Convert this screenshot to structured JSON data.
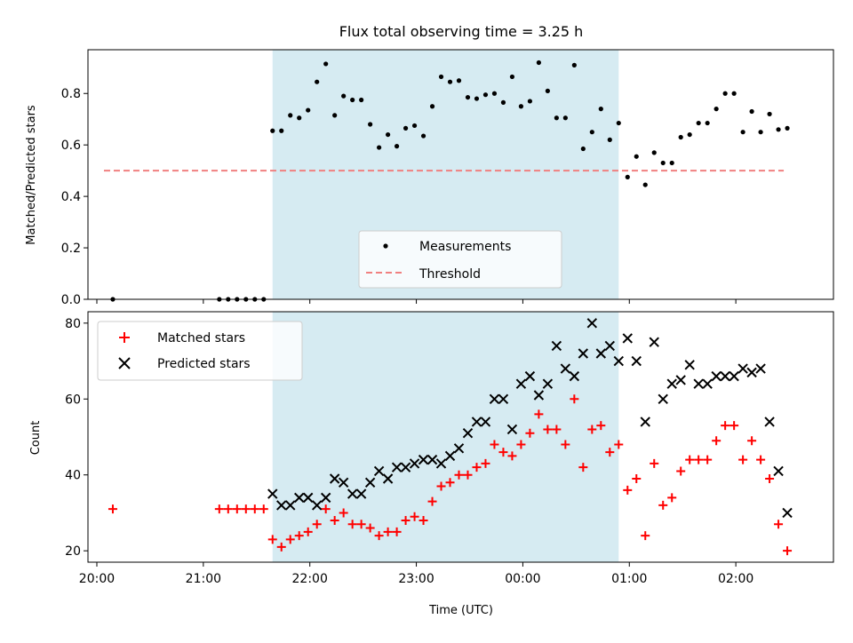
{
  "chart_data": [
    {
      "type": "scatter",
      "title": "Flux total observing time = 3.25 h",
      "ylabel": "Matched/Predicted stars",
      "xlim": [
        "19:55",
        "02:55"
      ],
      "ylim": [
        0,
        0.97
      ],
      "yticks": [
        "0.0",
        "0.2",
        "0.4",
        "0.6",
        "0.8"
      ],
      "shaded_region": {
        "start": "21:39",
        "end": "00:54"
      },
      "legend": {
        "position": "lower center",
        "entries": [
          "Measurements",
          "Threshold"
        ]
      },
      "threshold": {
        "name": "Threshold",
        "value": 0.5,
        "x_start": "20:04",
        "x_end": "02:27",
        "color": "#f08080"
      },
      "series": [
        {
          "name": "Measurements",
          "color": "#000000",
          "points": [
            [
              "20:09",
              0.0
            ],
            [
              "21:09",
              0.0
            ],
            [
              "21:14",
              0.0
            ],
            [
              "21:19",
              0.0
            ],
            [
              "21:24",
              0.0
            ],
            [
              "21:29",
              0.0
            ],
            [
              "21:34",
              0.0
            ],
            [
              "21:39",
              0.655
            ],
            [
              "21:44",
              0.655
            ],
            [
              "21:49",
              0.715
            ],
            [
              "21:54",
              0.705
            ],
            [
              "21:59",
              0.735
            ],
            [
              "22:04",
              0.845
            ],
            [
              "22:09",
              0.915
            ],
            [
              "22:14",
              0.715
            ],
            [
              "22:19",
              0.79
            ],
            [
              "22:24",
              0.775
            ],
            [
              "22:29",
              0.775
            ],
            [
              "22:34",
              0.68
            ],
            [
              "22:39",
              0.59
            ],
            [
              "22:44",
              0.64
            ],
            [
              "22:49",
              0.595
            ],
            [
              "22:54",
              0.665
            ],
            [
              "22:59",
              0.675
            ],
            [
              "23:04",
              0.635
            ],
            [
              "23:09",
              0.75
            ],
            [
              "23:14",
              0.865
            ],
            [
              "23:19",
              0.845
            ],
            [
              "23:24",
              0.85
            ],
            [
              "23:29",
              0.785
            ],
            [
              "23:34",
              0.78
            ],
            [
              "23:39",
              0.795
            ],
            [
              "23:44",
              0.8
            ],
            [
              "23:49",
              0.765
            ],
            [
              "23:54",
              0.865
            ],
            [
              "23:59",
              0.75
            ],
            [
              "00:04",
              0.77
            ],
            [
              "00:09",
              0.92
            ],
            [
              "00:14",
              0.81
            ],
            [
              "00:19",
              0.705
            ],
            [
              "00:24",
              0.705
            ],
            [
              "00:29",
              0.91
            ],
            [
              "00:34",
              0.585
            ],
            [
              "00:39",
              0.65
            ],
            [
              "00:44",
              0.74
            ],
            [
              "00:49",
              0.62
            ],
            [
              "00:54",
              0.685
            ],
            [
              "00:59",
              0.475
            ],
            [
              "01:04",
              0.555
            ],
            [
              "01:09",
              0.445
            ],
            [
              "01:14",
              0.57
            ],
            [
              "01:19",
              0.53
            ],
            [
              "01:24",
              0.53
            ],
            [
              "01:29",
              0.63
            ],
            [
              "01:34",
              0.64
            ],
            [
              "01:39",
              0.685
            ],
            [
              "01:44",
              0.685
            ],
            [
              "01:49",
              0.74
            ],
            [
              "01:54",
              0.8
            ],
            [
              "01:59",
              0.8
            ],
            [
              "02:04",
              0.65
            ],
            [
              "02:09",
              0.73
            ],
            [
              "02:14",
              0.65
            ],
            [
              "02:19",
              0.72
            ],
            [
              "02:24",
              0.66
            ],
            [
              "02:29",
              0.665
            ]
          ]
        }
      ]
    },
    {
      "type": "scatter",
      "xlabel": "Time (UTC)",
      "ylabel": "Count",
      "xlim": [
        "19:55",
        "02:55"
      ],
      "ylim": [
        17,
        83
      ],
      "yticks": [
        "20",
        "40",
        "60",
        "80"
      ],
      "xticks": [
        "20:00",
        "21:00",
        "22:00",
        "23:00",
        "00:00",
        "01:00",
        "02:00"
      ],
      "shaded_region": {
        "start": "21:39",
        "end": "00:54"
      },
      "legend": {
        "position": "top-left",
        "entries": [
          "Matched stars",
          "Predicted stars"
        ]
      },
      "series": [
        {
          "name": "Matched stars",
          "color": "#ff0000",
          "marker": "plus",
          "points": [
            [
              "20:09",
              31
            ],
            [
              "21:09",
              31
            ],
            [
              "21:14",
              31
            ],
            [
              "21:19",
              31
            ],
            [
              "21:24",
              31
            ],
            [
              "21:29",
              31
            ],
            [
              "21:34",
              31
            ],
            [
              "21:39",
              23
            ],
            [
              "21:44",
              21
            ],
            [
              "21:49",
              23
            ],
            [
              "21:54",
              24
            ],
            [
              "21:59",
              25
            ],
            [
              "22:04",
              27
            ],
            [
              "22:09",
              31
            ],
            [
              "22:14",
              28
            ],
            [
              "22:19",
              30
            ],
            [
              "22:24",
              27
            ],
            [
              "22:29",
              27
            ],
            [
              "22:34",
              26
            ],
            [
              "22:39",
              24
            ],
            [
              "22:44",
              25
            ],
            [
              "22:49",
              25
            ],
            [
              "22:54",
              28
            ],
            [
              "22:59",
              29
            ],
            [
              "23:04",
              28
            ],
            [
              "23:09",
              33
            ],
            [
              "23:14",
              37
            ],
            [
              "23:19",
              38
            ],
            [
              "23:24",
              40
            ],
            [
              "23:29",
              40
            ],
            [
              "23:34",
              42
            ],
            [
              "23:39",
              43
            ],
            [
              "23:44",
              48
            ],
            [
              "23:49",
              46
            ],
            [
              "23:54",
              45
            ],
            [
              "23:59",
              48
            ],
            [
              "00:04",
              51
            ],
            [
              "00:09",
              56
            ],
            [
              "00:14",
              52
            ],
            [
              "00:19",
              52
            ],
            [
              "00:24",
              48
            ],
            [
              "00:29",
              60
            ],
            [
              "00:34",
              42
            ],
            [
              "00:39",
              52
            ],
            [
              "00:44",
              53
            ],
            [
              "00:49",
              46
            ],
            [
              "00:54",
              48
            ],
            [
              "00:59",
              36
            ],
            [
              "01:04",
              39
            ],
            [
              "01:09",
              24
            ],
            [
              "01:14",
              43
            ],
            [
              "01:19",
              32
            ],
            [
              "01:24",
              34
            ],
            [
              "01:29",
              41
            ],
            [
              "01:34",
              44
            ],
            [
              "01:39",
              44
            ],
            [
              "01:44",
              44
            ],
            [
              "01:49",
              49
            ],
            [
              "01:54",
              53
            ],
            [
              "01:59",
              53
            ],
            [
              "02:04",
              44
            ],
            [
              "02:09",
              49
            ],
            [
              "02:14",
              44
            ],
            [
              "02:19",
              39
            ],
            [
              "02:24",
              27
            ],
            [
              "02:29",
              20
            ]
          ]
        },
        {
          "name": "Predicted stars",
          "color": "#000000",
          "marker": "x",
          "points": [
            [
              "21:39",
              35
            ],
            [
              "21:44",
              32
            ],
            [
              "21:49",
              32
            ],
            [
              "21:54",
              34
            ],
            [
              "21:59",
              34
            ],
            [
              "22:04",
              32
            ],
            [
              "22:09",
              34
            ],
            [
              "22:14",
              39
            ],
            [
              "22:19",
              38
            ],
            [
              "22:24",
              35
            ],
            [
              "22:29",
              35
            ],
            [
              "22:34",
              38
            ],
            [
              "22:39",
              41
            ],
            [
              "22:44",
              39
            ],
            [
              "22:49",
              42
            ],
            [
              "22:54",
              42
            ],
            [
              "22:59",
              43
            ],
            [
              "23:04",
              44
            ],
            [
              "23:09",
              44
            ],
            [
              "23:14",
              43
            ],
            [
              "23:19",
              45
            ],
            [
              "23:24",
              47
            ],
            [
              "23:29",
              51
            ],
            [
              "23:34",
              54
            ],
            [
              "23:39",
              54
            ],
            [
              "23:44",
              60
            ],
            [
              "23:49",
              60
            ],
            [
              "23:54",
              52
            ],
            [
              "23:59",
              64
            ],
            [
              "00:04",
              66
            ],
            [
              "00:09",
              61
            ],
            [
              "00:14",
              64
            ],
            [
              "00:19",
              74
            ],
            [
              "00:24",
              68
            ],
            [
              "00:29",
              66
            ],
            [
              "00:34",
              72
            ],
            [
              "00:39",
              80
            ],
            [
              "00:44",
              72
            ],
            [
              "00:49",
              74
            ],
            [
              "00:54",
              70
            ],
            [
              "00:59",
              76
            ],
            [
              "01:04",
              70
            ],
            [
              "01:09",
              54
            ],
            [
              "01:14",
              75
            ],
            [
              "01:19",
              60
            ],
            [
              "01:24",
              64
            ],
            [
              "01:29",
              65
            ],
            [
              "01:34",
              69
            ],
            [
              "01:39",
              64
            ],
            [
              "01:44",
              64
            ],
            [
              "01:49",
              66
            ],
            [
              "01:54",
              66
            ],
            [
              "01:59",
              66
            ],
            [
              "02:04",
              68
            ],
            [
              "02:09",
              67
            ],
            [
              "02:14",
              68
            ],
            [
              "02:19",
              54
            ],
            [
              "02:24",
              41
            ],
            [
              "02:29",
              30
            ]
          ]
        }
      ]
    }
  ],
  "colors": {
    "shade": "#add8e6",
    "matched": "#ff0000",
    "predicted": "#000000",
    "threshold": "#f08080"
  }
}
